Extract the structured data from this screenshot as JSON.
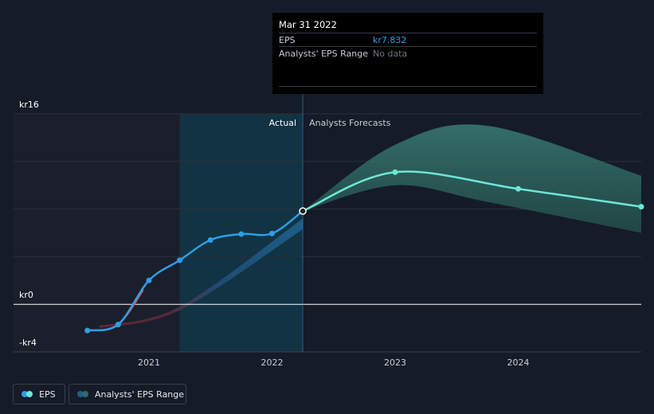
{
  "chart_data": {
    "type": "line",
    "currency": "kr",
    "y_ticks": [
      {
        "value": 16,
        "label": "kr16"
      },
      {
        "value": 0,
        "label": "kr0"
      },
      {
        "value": -4,
        "label": "-kr4"
      }
    ],
    "ylim": [
      -4,
      16
    ],
    "x_ticks": [
      {
        "value": 2021,
        "label": "2021"
      },
      {
        "value": 2022,
        "label": "2022"
      },
      {
        "value": 2023,
        "label": "2023"
      },
      {
        "value": 2024,
        "label": "2024"
      }
    ],
    "xlim": [
      2019.9,
      2025.0
    ],
    "split_x": 2022.25,
    "section_labels": {
      "actual": "Actual",
      "forecast": "Analysts Forecasts"
    },
    "series": [
      {
        "name": "EPS",
        "actual_points": [
          {
            "x": 2020.5,
            "y": -2.2
          },
          {
            "x": 2020.75,
            "y": -1.7
          },
          {
            "x": 2021.0,
            "y": 2.0
          },
          {
            "x": 2021.25,
            "y": 3.7
          },
          {
            "x": 2021.5,
            "y": 5.4
          },
          {
            "x": 2021.75,
            "y": 5.9
          },
          {
            "x": 2022.0,
            "y": 5.95
          },
          {
            "x": 2022.25,
            "y": 7.832
          }
        ],
        "forecast_points": [
          {
            "x": 2022.25,
            "y": 7.832
          },
          {
            "x": 2023.0,
            "y": 11.1
          },
          {
            "x": 2024.0,
            "y": 9.7
          },
          {
            "x": 2025.0,
            "y": 8.2
          }
        ]
      }
    ],
    "analyst_eps_range": {
      "name": "Analysts' EPS Range",
      "historical": [
        {
          "x": 2020.6,
          "low": -2.0,
          "high": -1.8
        },
        {
          "x": 2021.25,
          "low": -0.5,
          "high": -0.2
        },
        {
          "x": 2022.25,
          "low": 6.3,
          "high": 7.2
        }
      ],
      "forecast": [
        {
          "x": 2022.25,
          "low": 7.832,
          "high": 7.832
        },
        {
          "x": 2023.0,
          "low": 10.0,
          "high": 13.4
        },
        {
          "x": 2023.75,
          "low": 8.6,
          "high": 15.0
        },
        {
          "x": 2025.0,
          "low": 6.0,
          "high": 10.8
        }
      ]
    },
    "colors": {
      "background": "#151b27",
      "actual_shade": "#1a1f2b",
      "highlight": "#0f3b4e",
      "eps_line": "#2d9ee6",
      "eps_negative": "#e04a4f",
      "forecast_line": "#6ee6d6",
      "forecast_range": "#2f6b64",
      "history_range_positive": "#1f5f8a",
      "history_range_negative": "#6b2b36"
    }
  },
  "tooltip": {
    "date": "Mar 31 2022",
    "eps_label": "EPS",
    "eps_value": "kr7.832",
    "range_label": "Analysts' EPS Range",
    "range_value": "No data"
  },
  "legend": {
    "eps": "EPS",
    "range": "Analysts' EPS Range"
  }
}
